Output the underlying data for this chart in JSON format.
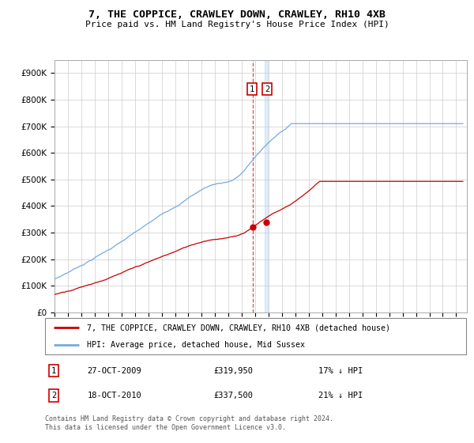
{
  "title": "7, THE COPPICE, CRAWLEY DOWN, CRAWLEY, RH10 4XB",
  "subtitle": "Price paid vs. HM Land Registry's House Price Index (HPI)",
  "legend_red": "7, THE COPPICE, CRAWLEY DOWN, CRAWLEY, RH10 4XB (detached house)",
  "legend_blue": "HPI: Average price, detached house, Mid Sussex",
  "annotation1_date": "27-OCT-2009",
  "annotation1_price": "£319,950",
  "annotation1_hpi": "17% ↓ HPI",
  "annotation2_date": "18-OCT-2010",
  "annotation2_price": "£337,500",
  "annotation2_hpi": "21% ↓ HPI",
  "footnote": "Contains HM Land Registry data © Crown copyright and database right 2024.\nThis data is licensed under the Open Government Licence v3.0.",
  "sale1_year": 2009.82,
  "sale1_value": 319950,
  "sale2_year": 2010.79,
  "sale2_value": 337500,
  "red_line_color": "#cc0000",
  "blue_line_color": "#77aadd",
  "grid_color": "#cccccc",
  "vline1_color": "#cc0000",
  "vline2_color": "#aaccee",
  "ylim": [
    0,
    950000
  ],
  "xlim_start": 1995,
  "xlim_end": 2025.8,
  "yticks": [
    0,
    100000,
    200000,
    300000,
    400000,
    500000,
    600000,
    700000,
    800000,
    900000
  ],
  "xticks": [
    1995,
    1996,
    1997,
    1998,
    1999,
    2000,
    2001,
    2002,
    2003,
    2004,
    2005,
    2006,
    2007,
    2008,
    2009,
    2010,
    2011,
    2012,
    2013,
    2014,
    2015,
    2016,
    2017,
    2018,
    2019,
    2020,
    2021,
    2022,
    2023,
    2024,
    2025
  ]
}
